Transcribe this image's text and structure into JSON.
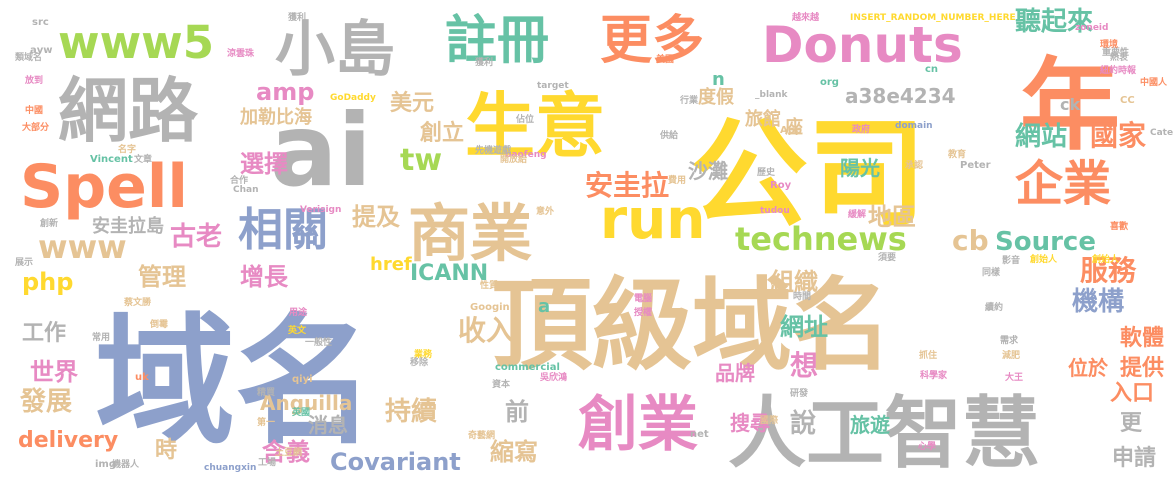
{
  "cloud": {
    "words": [
      {
        "text": "域名",
        "color": "#8da0cb"
      },
      {
        "text": "頂級域名",
        "color": "#e5c494"
      },
      {
        "text": "公司",
        "color": "#ffd92f"
      },
      {
        "text": "年",
        "color": "#fc8d62"
      },
      {
        "text": "生意",
        "color": "#ffd92f"
      },
      {
        "text": "ai",
        "color": "#b3b3b3"
      },
      {
        "text": "人工智慧",
        "color": "#b3b3b3"
      },
      {
        "text": "網路",
        "color": "#b3b3b3"
      },
      {
        "text": "Spell",
        "color": "#fc8d62"
      },
      {
        "text": "小島",
        "color": "#b3b3b3"
      },
      {
        "text": "商業",
        "color": "#e5c494"
      },
      {
        "text": "創業",
        "color": "#e78ac3"
      },
      {
        "text": "註冊",
        "color": "#66c2a5"
      },
      {
        "text": "更多",
        "color": "#fc8d62"
      },
      {
        "text": "Donuts",
        "color": "#e78ac3"
      },
      {
        "text": "www5",
        "color": "#a6d854"
      },
      {
        "text": "run",
        "color": "#ffd92f"
      },
      {
        "text": "企業",
        "color": "#fc8d62"
      },
      {
        "text": "相關",
        "color": "#8da0cb"
      },
      {
        "text": "technews",
        "color": "#a6d854"
      },
      {
        "text": "聽起來",
        "color": "#66c2a5"
      },
      {
        "text": "www",
        "color": "#e5c494"
      },
      {
        "text": "tw",
        "color": "#a6d854"
      },
      {
        "text": "Source",
        "color": "#66c2a5"
      },
      {
        "text": "amp",
        "color": "#e78ac3"
      },
      {
        "text": "國家",
        "color": "#fc8d62"
      },
      {
        "text": "網站",
        "color": "#66c2a5"
      },
      {
        "text": "選擇",
        "color": "#e78ac3"
      },
      {
        "text": "安圭拉",
        "color": "#fc8d62"
      },
      {
        "text": "古老",
        "color": "#e78ac3"
      },
      {
        "text": "提及",
        "color": "#e5c494"
      },
      {
        "text": "創立",
        "color": "#e5c494"
      },
      {
        "text": "美元",
        "color": "#e5c494"
      },
      {
        "text": "a38e4234",
        "color": "#b3b3b3"
      },
      {
        "text": "陽光",
        "color": "#66c2a5"
      },
      {
        "text": "ICANN",
        "color": "#66c2a5"
      },
      {
        "text": "地區",
        "color": "#e5c494"
      },
      {
        "text": "cb",
        "color": "#e5c494"
      },
      {
        "text": "服務",
        "color": "#fc8d62"
      },
      {
        "text": "增長",
        "color": "#e78ac3"
      },
      {
        "text": "管理",
        "color": "#e5c494"
      },
      {
        "text": "組織",
        "color": "#e5c494"
      },
      {
        "text": "機構",
        "color": "#8da0cb"
      },
      {
        "text": "php",
        "color": "#ffd92f"
      },
      {
        "text": "收入",
        "color": "#e5c494"
      },
      {
        "text": "網址",
        "color": "#66c2a5"
      },
      {
        "text": "軟體",
        "color": "#fc8d62"
      },
      {
        "text": "工作",
        "color": "#b3b3b3"
      },
      {
        "text": "提供",
        "color": "#fc8d62"
      },
      {
        "text": "想",
        "color": "#e78ac3"
      },
      {
        "text": "位於",
        "color": "#fc8d62"
      },
      {
        "text": "世界",
        "color": "#e78ac3"
      },
      {
        "text": "發展",
        "color": "#e5c494"
      },
      {
        "text": "持續",
        "color": "#e5c494"
      },
      {
        "text": "品牌",
        "color": "#e78ac3"
      },
      {
        "text": "入口",
        "color": "#fc8d62"
      },
      {
        "text": "前",
        "color": "#b3b3b3"
      },
      {
        "text": "delivery",
        "color": "#fc8d62"
      },
      {
        "text": "消息",
        "color": "#b3b3b3"
      },
      {
        "text": "說",
        "color": "#b3b3b3"
      },
      {
        "text": "搜尋",
        "color": "#e78ac3"
      },
      {
        "text": "旅遊",
        "color": "#66c2a5"
      },
      {
        "text": "更",
        "color": "#b3b3b3"
      },
      {
        "text": "申請",
        "color": "#b3b3b3"
      },
      {
        "text": "時",
        "color": "#e5c494"
      },
      {
        "text": "含義",
        "color": "#e78ac3"
      },
      {
        "text": "Covariant",
        "color": "#8da0cb"
      },
      {
        "text": "縮寫",
        "color": "#e5c494"
      },
      {
        "text": "Anguilla",
        "color": "#e5c494"
      },
      {
        "text": "沙灘",
        "color": "#b3b3b3"
      },
      {
        "text": "旅館",
        "color": "#e5c494"
      },
      {
        "text": "座",
        "color": "#e5c494"
      },
      {
        "text": "度假",
        "color": "#e5c494"
      },
      {
        "text": "加勒比海",
        "color": "#e5c494"
      },
      {
        "text": "安圭拉島",
        "color": "#b3b3b3"
      },
      {
        "text": "href",
        "color": "#ffd92f"
      },
      {
        "text": "ck",
        "color": "#b3b3b3"
      },
      {
        "text": "n",
        "color": "#66c2a5"
      },
      {
        "text": "a",
        "color": "#66c2a5"
      },
      {
        "text": "INSERT_RANDOM_NUMBER_HERE",
        "color": "#ffd92f"
      },
      {
        "text": "GoDaddy",
        "color": "#ffd92f"
      },
      {
        "text": "Verisign",
        "color": "#e78ac3"
      },
      {
        "text": "Vincent",
        "color": "#66c2a5"
      },
      {
        "text": "Chan",
        "color": "#b3b3b3"
      },
      {
        "text": "Peter",
        "color": "#b3b3b3"
      },
      {
        "text": "Roy",
        "color": "#e78ac3"
      },
      {
        "text": "Googin",
        "color": "#e5c494"
      },
      {
        "text": "commercial",
        "color": "#66c2a5"
      },
      {
        "text": "chuangxin",
        "color": "#8da0cb"
      },
      {
        "text": "baofeng",
        "color": "#e78ac3"
      },
      {
        "text": "tudou",
        "color": "#e78ac3"
      },
      {
        "text": "target",
        "color": "#b3b3b3"
      },
      {
        "text": "domain",
        "color": "#8da0cb"
      },
      {
        "text": "_blank",
        "color": "#b3b3b3"
      },
      {
        "text": "zoneid",
        "color": "#e78ac3"
      },
      {
        "text": "src",
        "color": "#b3b3b3"
      },
      {
        "text": "avw",
        "color": "#b3b3b3"
      },
      {
        "text": "uk",
        "color": "#fc8d62"
      },
      {
        "text": "qiyi",
        "color": "#e5c494"
      },
      {
        "text": "img",
        "color": "#b3b3b3"
      },
      {
        "text": "net",
        "color": "#b3b3b3"
      },
      {
        "text": "org",
        "color": "#66c2a5"
      },
      {
        "text": "cn",
        "color": "#66c2a5"
      },
      {
        "text": "CC",
        "color": "#e5c494"
      },
      {
        "text": "App",
        "color": "#e5c494"
      },
      {
        "text": "Cate",
        "color": "#b3b3b3"
      },
      {
        "text": "機器人",
        "color": "#b3b3b3"
      },
      {
        "text": "土豆網",
        "color": "#e5c494"
      },
      {
        "text": "吳欣鴻",
        "color": "#e78ac3"
      },
      {
        "text": "奇藝網",
        "color": "#e5c494"
      },
      {
        "text": "先機遊戲",
        "color": "#b3b3b3"
      },
      {
        "text": "中國人",
        "color": "#fc8d62"
      },
      {
        "text": "類域名",
        "color": "#b3b3b3"
      },
      {
        "text": "大部分",
        "color": "#fc8d62"
      },
      {
        "text": "創始人",
        "color": "#ffd92f"
      },
      {
        "text": "涼雲珠",
        "color": "#e78ac3"
      },
      {
        "text": "重要性",
        "color": "#b3b3b3"
      },
      {
        "text": "蔡文勝",
        "color": "#e5c494"
      },
      {
        "text": "越來越",
        "color": "#e78ac3"
      },
      {
        "text": "英文",
        "color": "#ffd92f"
      },
      {
        "text": "英國",
        "color": "#66c2a5"
      },
      {
        "text": "放到",
        "color": "#e78ac3"
      },
      {
        "text": "中國",
        "color": "#fc8d62"
      },
      {
        "text": "名字",
        "color": "#e5c494"
      },
      {
        "text": "文章",
        "color": "#b3b3b3"
      },
      {
        "text": "合作",
        "color": "#b3b3b3"
      },
      {
        "text": "創新",
        "color": "#b3b3b3"
      },
      {
        "text": "展示",
        "color": "#b3b3b3"
      },
      {
        "text": "常用",
        "color": "#b3b3b3"
      },
      {
        "text": "倒霉",
        "color": "#e5c494"
      },
      {
        "text": "用途",
        "color": "#e78ac3"
      },
      {
        "text": "一般性",
        "color": "#b3b3b3"
      },
      {
        "text": "精買",
        "color": "#b3b3b3"
      },
      {
        "text": "第一",
        "color": "#e5c494"
      },
      {
        "text": "工場",
        "color": "#b3b3b3"
      },
      {
        "text": "業務",
        "color": "#ffd92f"
      },
      {
        "text": "資本",
        "color": "#b3b3b3"
      },
      {
        "text": "移除",
        "color": "#b3b3b3"
      },
      {
        "text": "性質",
        "color": "#e5c494"
      },
      {
        "text": "開放給",
        "color": "#e5c494"
      },
      {
        "text": "佔位",
        "color": "#b3b3b3"
      },
      {
        "text": "獲利",
        "color": "#b3b3b3"
      },
      {
        "text": "行業",
        "color": "#b3b3b3"
      },
      {
        "text": "供給",
        "color": "#b3b3b3"
      },
      {
        "text": "美國",
        "color": "#fc8d62"
      },
      {
        "text": "政府",
        "color": "#e78ac3"
      },
      {
        "text": "費用",
        "color": "#e5c494"
      },
      {
        "text": "歷史",
        "color": "#b3b3b3"
      },
      {
        "text": "承認",
        "color": "#e5c494"
      },
      {
        "text": "意外",
        "color": "#e5c494"
      },
      {
        "text": "緩解",
        "color": "#e78ac3"
      },
      {
        "text": "電腦",
        "color": "#e78ac3"
      },
      {
        "text": "授權",
        "color": "#e78ac3"
      },
      {
        "text": "時間",
        "color": "#b3b3b3"
      },
      {
        "text": "須要",
        "color": "#b3b3b3"
      },
      {
        "text": "創始人",
        "color": "#ffd92f"
      },
      {
        "text": "影音",
        "color": "#b3b3b3"
      },
      {
        "text": "同樣",
        "color": "#b3b3b3"
      },
      {
        "text": "續約",
        "color": "#b3b3b3"
      },
      {
        "text": "需求",
        "color": "#b3b3b3"
      },
      {
        "text": "減肥",
        "color": "#e5c494"
      },
      {
        "text": "抓住",
        "color": "#e5c494"
      },
      {
        "text": "科學家",
        "color": "#e78ac3"
      },
      {
        "text": "大王",
        "color": "#e78ac3"
      },
      {
        "text": "研發",
        "color": "#b3b3b3"
      },
      {
        "text": "國際",
        "color": "#e5c494"
      },
      {
        "text": "心學",
        "color": "#e78ac3"
      },
      {
        "text": "教育",
        "color": "#e5c494"
      },
      {
        "text": "喜歡",
        "color": "#fc8d62"
      },
      {
        "text": "熱衷",
        "color": "#b3b3b3"
      },
      {
        "text": "環境",
        "color": "#fc8d62"
      },
      {
        "text": "紐約時報",
        "color": "#e78ac3"
      },
      {
        "text": "獲利",
        "color": "#b3b3b3"
      }
    ]
  }
}
